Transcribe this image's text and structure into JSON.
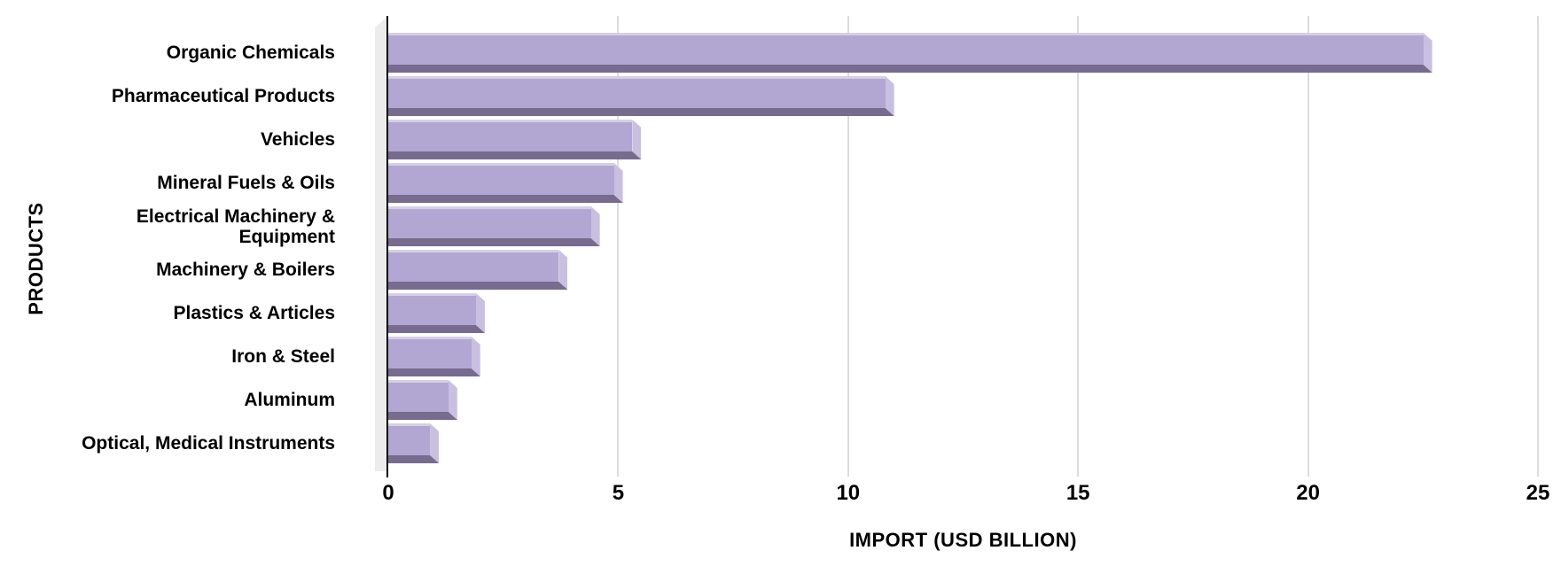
{
  "chart_data": {
    "type": "bar",
    "orientation": "horizontal",
    "title": "",
    "xlabel": "IMPORT (USD BILLION)",
    "ylabel": "PRODUCTS",
    "categories": [
      "Organic Chemicals",
      "Pharmaceutical Products",
      "Vehicles",
      "Mineral Fuels & Oils",
      "Electrical Machinery & Equipment",
      "Machinery & Boilers",
      "Plastics & Articles",
      "Iron & Steel",
      "Aluminum",
      "Optical, Medical Instruments"
    ],
    "values": [
      22.7,
      11.0,
      5.5,
      5.1,
      4.6,
      3.9,
      2.1,
      2.0,
      1.5,
      1.1
    ],
    "xlim": [
      0,
      25
    ],
    "xticks": [
      0,
      5,
      10,
      15,
      20,
      25
    ],
    "grid": true,
    "legend": false,
    "bar_style": "3d-bevel"
  },
  "colors": {
    "background": "#ffffff",
    "bar_face": "#b2a6d3",
    "bar_highlight": "#d5cfe8",
    "bar_side": "#c9c0e0",
    "bar_shadow": "#776b8e",
    "gridline": "#dcdcdc",
    "wall": "#ececec",
    "axis": "#000000",
    "text": "#000000"
  }
}
